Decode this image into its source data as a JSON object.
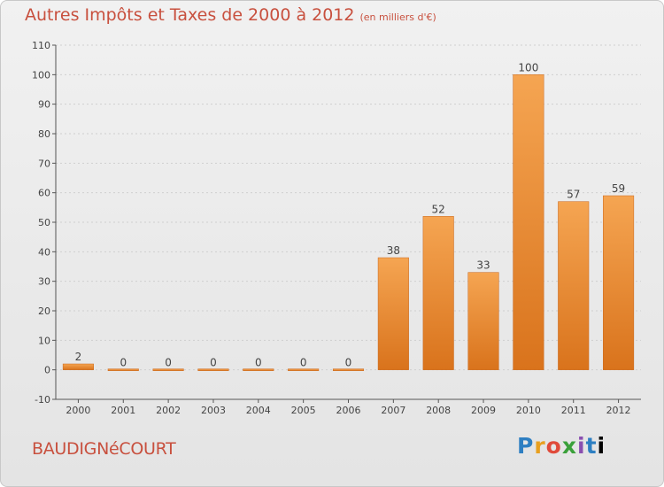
{
  "header": {
    "title": "Autres Impôts et Taxes de 2000 à 2012",
    "subtitle": "(en milliers d'€)"
  },
  "commune_name": "BAUDIGNéCOURT",
  "logo_text": "Proxiti",
  "colors": {
    "bar_light": "#f5a552",
    "bar_dark": "#d9731c",
    "title": "#c8503e",
    "grid": "#cfcfcf"
  },
  "chart_data": {
    "type": "bar",
    "categories": [
      "2000",
      "2001",
      "2002",
      "2003",
      "2004",
      "2005",
      "2006",
      "2007",
      "2008",
      "2009",
      "2010",
      "2011",
      "2012"
    ],
    "values": [
      2,
      0,
      0,
      0,
      0,
      0,
      0,
      38,
      52,
      33,
      100,
      57,
      59
    ],
    "data_labels": [
      "2",
      "0",
      "0",
      "0",
      "0",
      "0",
      "0",
      "38",
      "52",
      "33",
      "100",
      "57",
      "59"
    ],
    "ylim": [
      -10,
      110
    ],
    "yticks": [
      -10,
      0,
      10,
      20,
      30,
      40,
      50,
      60,
      70,
      80,
      90,
      100,
      110
    ],
    "ytick_labels": [
      "-10",
      "0",
      "10",
      "20",
      "30",
      "40",
      "50",
      "60",
      "70",
      "80",
      "90",
      "100",
      "110"
    ],
    "grid": true
  }
}
